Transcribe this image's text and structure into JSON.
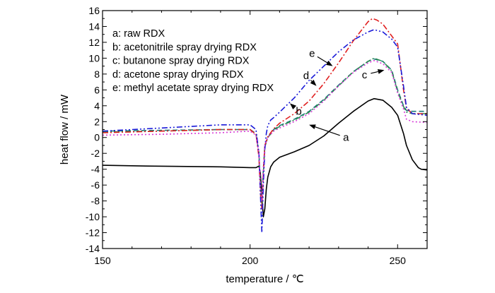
{
  "chart_data": {
    "type": "line",
    "xlabel": "temperature / ℃",
    "ylabel": "heat flow / mW",
    "xlim": [
      150,
      260
    ],
    "ylim": [
      -14,
      16
    ],
    "xticks": [
      "150",
      "200",
      "250"
    ],
    "yticks": [
      "-14",
      "-12",
      "-10",
      "-8",
      "-6",
      "-4",
      "-2",
      "0",
      "2",
      "4",
      "6",
      "8",
      "10",
      "12",
      "14",
      "16"
    ],
    "grid": false,
    "legend": {
      "placement": "top-left",
      "entries": [
        "a: raw RDX",
        "b: acetonitrile spray drying RDX",
        "c: butanone spray drying RDX",
        "d: acetone spray drying RDX",
        "e: methyl acetate spray drying RDX"
      ]
    },
    "series": [
      {
        "name": "a",
        "color": "#000000",
        "dash": "solid",
        "x": [
          150,
          165,
          190,
          200,
          202,
          203,
          203.5,
          204,
          204.5,
          205,
          205.5,
          206,
          207,
          208,
          210,
          215,
          220,
          225,
          230,
          235,
          240,
          242,
          245,
          248,
          250,
          252,
          253,
          255,
          257,
          258,
          260
        ],
        "y": [
          -3.5,
          -3.6,
          -3.7,
          -3.8,
          -3.8,
          -3.6,
          -4.5,
          -7.5,
          -10.0,
          -9.0,
          -6.5,
          -5.0,
          -3.7,
          -3.1,
          -2.5,
          -1.8,
          -1.0,
          0.2,
          1.8,
          3.3,
          4.6,
          4.9,
          4.7,
          3.8,
          2.8,
          0.5,
          -1.0,
          -2.8,
          -3.8,
          -4.0,
          -4.1
        ]
      },
      {
        "name": "b",
        "color": "#1a7a7a",
        "dash": "dash",
        "x": [
          150,
          170,
          190,
          200,
          202,
          203,
          203.5,
          204,
          204.5,
          205,
          206,
          208,
          210,
          215,
          220,
          225,
          230,
          235,
          240,
          242,
          245,
          248,
          250,
          252,
          253,
          255,
          260
        ],
        "y": [
          0.8,
          0.9,
          1.0,
          1.0,
          0.5,
          -2.0,
          -6.0,
          -8.0,
          -4.0,
          -1.0,
          0.0,
          1.0,
          1.5,
          2.3,
          3.3,
          4.8,
          6.6,
          8.3,
          9.6,
          9.9,
          9.6,
          8.5,
          6.0,
          4.0,
          3.4,
          3.3,
          3.3
        ]
      },
      {
        "name": "c",
        "color": "#2a8a50",
        "dash": "dashdot",
        "x": [
          150,
          170,
          190,
          200,
          202,
          203,
          203.5,
          204,
          204.5,
          205,
          206,
          208,
          210,
          215,
          220,
          225,
          230,
          235,
          240,
          242,
          245,
          248,
          250,
          252,
          253,
          255,
          260
        ],
        "y": [
          0.7,
          0.8,
          1.0,
          1.0,
          0.4,
          -2.0,
          -6.5,
          -8.5,
          -4.5,
          -1.2,
          0.0,
          0.9,
          1.4,
          2.2,
          3.2,
          4.7,
          6.5,
          8.3,
          9.6,
          10.0,
          9.6,
          8.4,
          5.8,
          3.9,
          3.2,
          3.0,
          3.0
        ]
      },
      {
        "name": "d",
        "color": "#e02020",
        "dash": "dashdot",
        "x": [
          150,
          170,
          190,
          200,
          202,
          203,
          203.5,
          204,
          204.5,
          205,
          206,
          208,
          210,
          215,
          220,
          225,
          230,
          235,
          240,
          241.5,
          243,
          245,
          248,
          250,
          252,
          253,
          255,
          260
        ],
        "y": [
          0.6,
          0.8,
          1.0,
          1.0,
          0.4,
          -2.5,
          -7.0,
          -9.0,
          -4.5,
          -1.0,
          0.1,
          1.1,
          1.8,
          3.0,
          4.6,
          6.8,
          9.4,
          12.2,
          14.6,
          15.0,
          14.8,
          14.3,
          12.8,
          11.8,
          6.0,
          3.7,
          3.0,
          3.0
        ]
      },
      {
        "name": "e",
        "color": "#1a1ad8",
        "dash": "dashdotdot",
        "x": [
          150,
          170,
          190,
          200,
          202,
          203,
          203.5,
          204,
          204.5,
          205,
          205.5,
          206,
          207,
          208,
          210,
          215,
          220,
          225,
          230,
          235,
          240,
          242,
          245,
          248,
          250,
          252,
          253,
          255,
          260
        ],
        "y": [
          0.8,
          1.2,
          1.6,
          1.6,
          1.0,
          -2.0,
          -7.0,
          -12.0,
          -6.0,
          -1.5,
          0.5,
          1.5,
          2.2,
          2.5,
          3.2,
          5.0,
          7.2,
          9.0,
          10.8,
          12.3,
          13.3,
          13.6,
          13.3,
          12.4,
          11.4,
          6.5,
          3.8,
          3.0,
          2.8
        ]
      },
      {
        "name": "",
        "color": "#d838d8",
        "dash": "dot",
        "x": [
          150,
          170,
          190,
          200,
          202,
          203,
          203.5,
          204,
          204.5,
          205,
          206,
          208,
          210,
          215,
          220,
          225,
          230,
          235,
          240,
          242,
          245,
          248,
          250,
          252,
          253,
          255,
          260
        ],
        "y": [
          0.3,
          0.4,
          0.6,
          0.8,
          0.3,
          -2.0,
          -6.0,
          -8.0,
          -4.0,
          -1.0,
          0.0,
          0.8,
          1.2,
          2.0,
          3.0,
          4.6,
          6.5,
          8.2,
          9.4,
          9.7,
          9.3,
          8.2,
          5.6,
          3.6,
          2.3,
          2.0,
          1.9
        ]
      }
    ],
    "annotations": [
      {
        "label": "a",
        "text_x": 232.5,
        "text_y": 0,
        "arrow_to_x": 220,
        "arrow_to_y": 1.6
      },
      {
        "label": "b",
        "text_x": 216.5,
        "text_y": 3.3,
        "arrow_to_x": 213.5,
        "arrow_to_y": 4.3
      },
      {
        "label": "c",
        "text_x": 238.8,
        "text_y": 7.9,
        "arrow_to_x": 245.5,
        "arrow_to_y": 8.5
      },
      {
        "label": "d",
        "text_x": 219.0,
        "text_y": 7.8,
        "arrow_to_x": 222.5,
        "arrow_to_y": 6.5
      },
      {
        "label": "e",
        "text_x": 221.0,
        "text_y": 10.6,
        "arrow_to_x": 228.0,
        "arrow_to_y": 9.0
      }
    ]
  }
}
